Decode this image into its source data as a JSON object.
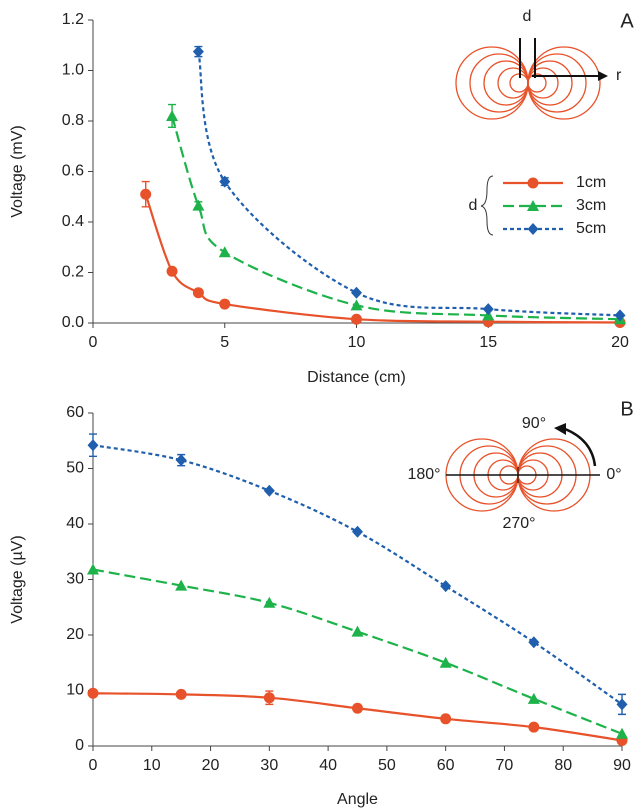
{
  "chart_data": [
    {
      "type": "scatter",
      "panel_label": "A",
      "xlabel": "Distance (cm)",
      "ylabel": "Voltage (mV)",
      "xlim": [
        0,
        20
      ],
      "ylim": [
        0,
        1.2
      ],
      "xticks": [
        0,
        5,
        10,
        15,
        20
      ],
      "yticks": [
        {
          "value": 0,
          "label": "0.0"
        },
        {
          "value": 0.2,
          "label": "0.2"
        },
        {
          "value": 0.4,
          "label": "0.4"
        },
        {
          "value": 0.6,
          "label": "0.6"
        },
        {
          "value": 0.8,
          "label": "0.8"
        },
        {
          "value": 1.0,
          "label": "1.0"
        },
        {
          "value": 1.2,
          "label": "1.2"
        }
      ],
      "legend_title": "d",
      "annotations": [
        "d",
        "r"
      ],
      "series": [
        {
          "name": "1cm",
          "color": "#e8522a",
          "marker": "circle",
          "dash": "solid",
          "x": [
            2,
            3,
            4,
            5,
            10,
            15,
            20
          ],
          "values": [
            0.51,
            0.205,
            0.12,
            0.075,
            0.015,
            0.005,
            0.002
          ],
          "errors": [
            0.05,
            null,
            null,
            null,
            null,
            null,
            null
          ]
        },
        {
          "name": "3cm",
          "color": "#1db34a",
          "marker": "triangle",
          "dash": "dashed",
          "x": [
            3,
            4,
            5,
            10,
            15,
            20
          ],
          "values": [
            0.82,
            0.465,
            0.28,
            0.07,
            0.03,
            0.015
          ],
          "errors": [
            0.045,
            0.015,
            null,
            null,
            null,
            null
          ]
        },
        {
          "name": "5cm",
          "color": "#1f5fad",
          "marker": "diamond",
          "dash": "dotted",
          "x": [
            4,
            5,
            10,
            15,
            20
          ],
          "values": [
            1.075,
            0.56,
            0.12,
            0.055,
            0.03
          ],
          "errors": [
            0.02,
            0.015,
            null,
            null,
            null
          ]
        }
      ]
    },
    {
      "type": "scatter",
      "panel_label": "B",
      "xlabel": "Angle",
      "ylabel": "Voltage (µV)",
      "xlim": [
        0,
        90
      ],
      "ylim": [
        0,
        60
      ],
      "xticks": [
        0,
        10,
        20,
        30,
        40,
        50,
        60,
        70,
        80,
        90
      ],
      "yticks": [
        0,
        10,
        20,
        30,
        40,
        50,
        60
      ],
      "annotations": [
        "90°",
        "180°",
        "0°",
        "270°"
      ],
      "series": [
        {
          "color": "#e8522a",
          "marker": "circle",
          "dash": "solid",
          "x": [
            0,
            15,
            30,
            45,
            60,
            75,
            90
          ],
          "values": [
            9.5,
            9.3,
            8.7,
            6.8,
            4.9,
            3.4,
            1.0
          ],
          "errors": [
            null,
            null,
            1.2,
            null,
            null,
            null,
            null
          ]
        },
        {
          "color": "#1db34a",
          "marker": "triangle",
          "dash": "dashed",
          "x": [
            0,
            15,
            30,
            45,
            60,
            75,
            90
          ],
          "values": [
            31.8,
            28.9,
            25.8,
            20.6,
            15.0,
            8.5,
            2.2
          ],
          "errors": [
            null,
            null,
            null,
            null,
            null,
            null,
            null
          ]
        },
        {
          "color": "#1f5fad",
          "marker": "diamond",
          "dash": "dotted",
          "x": [
            0,
            15,
            30,
            45,
            60,
            75,
            90
          ],
          "values": [
            54.2,
            51.5,
            46.0,
            38.6,
            28.8,
            18.7,
            7.5
          ],
          "errors": [
            2.0,
            1.0,
            null,
            null,
            null,
            null,
            1.8
          ]
        }
      ]
    }
  ]
}
